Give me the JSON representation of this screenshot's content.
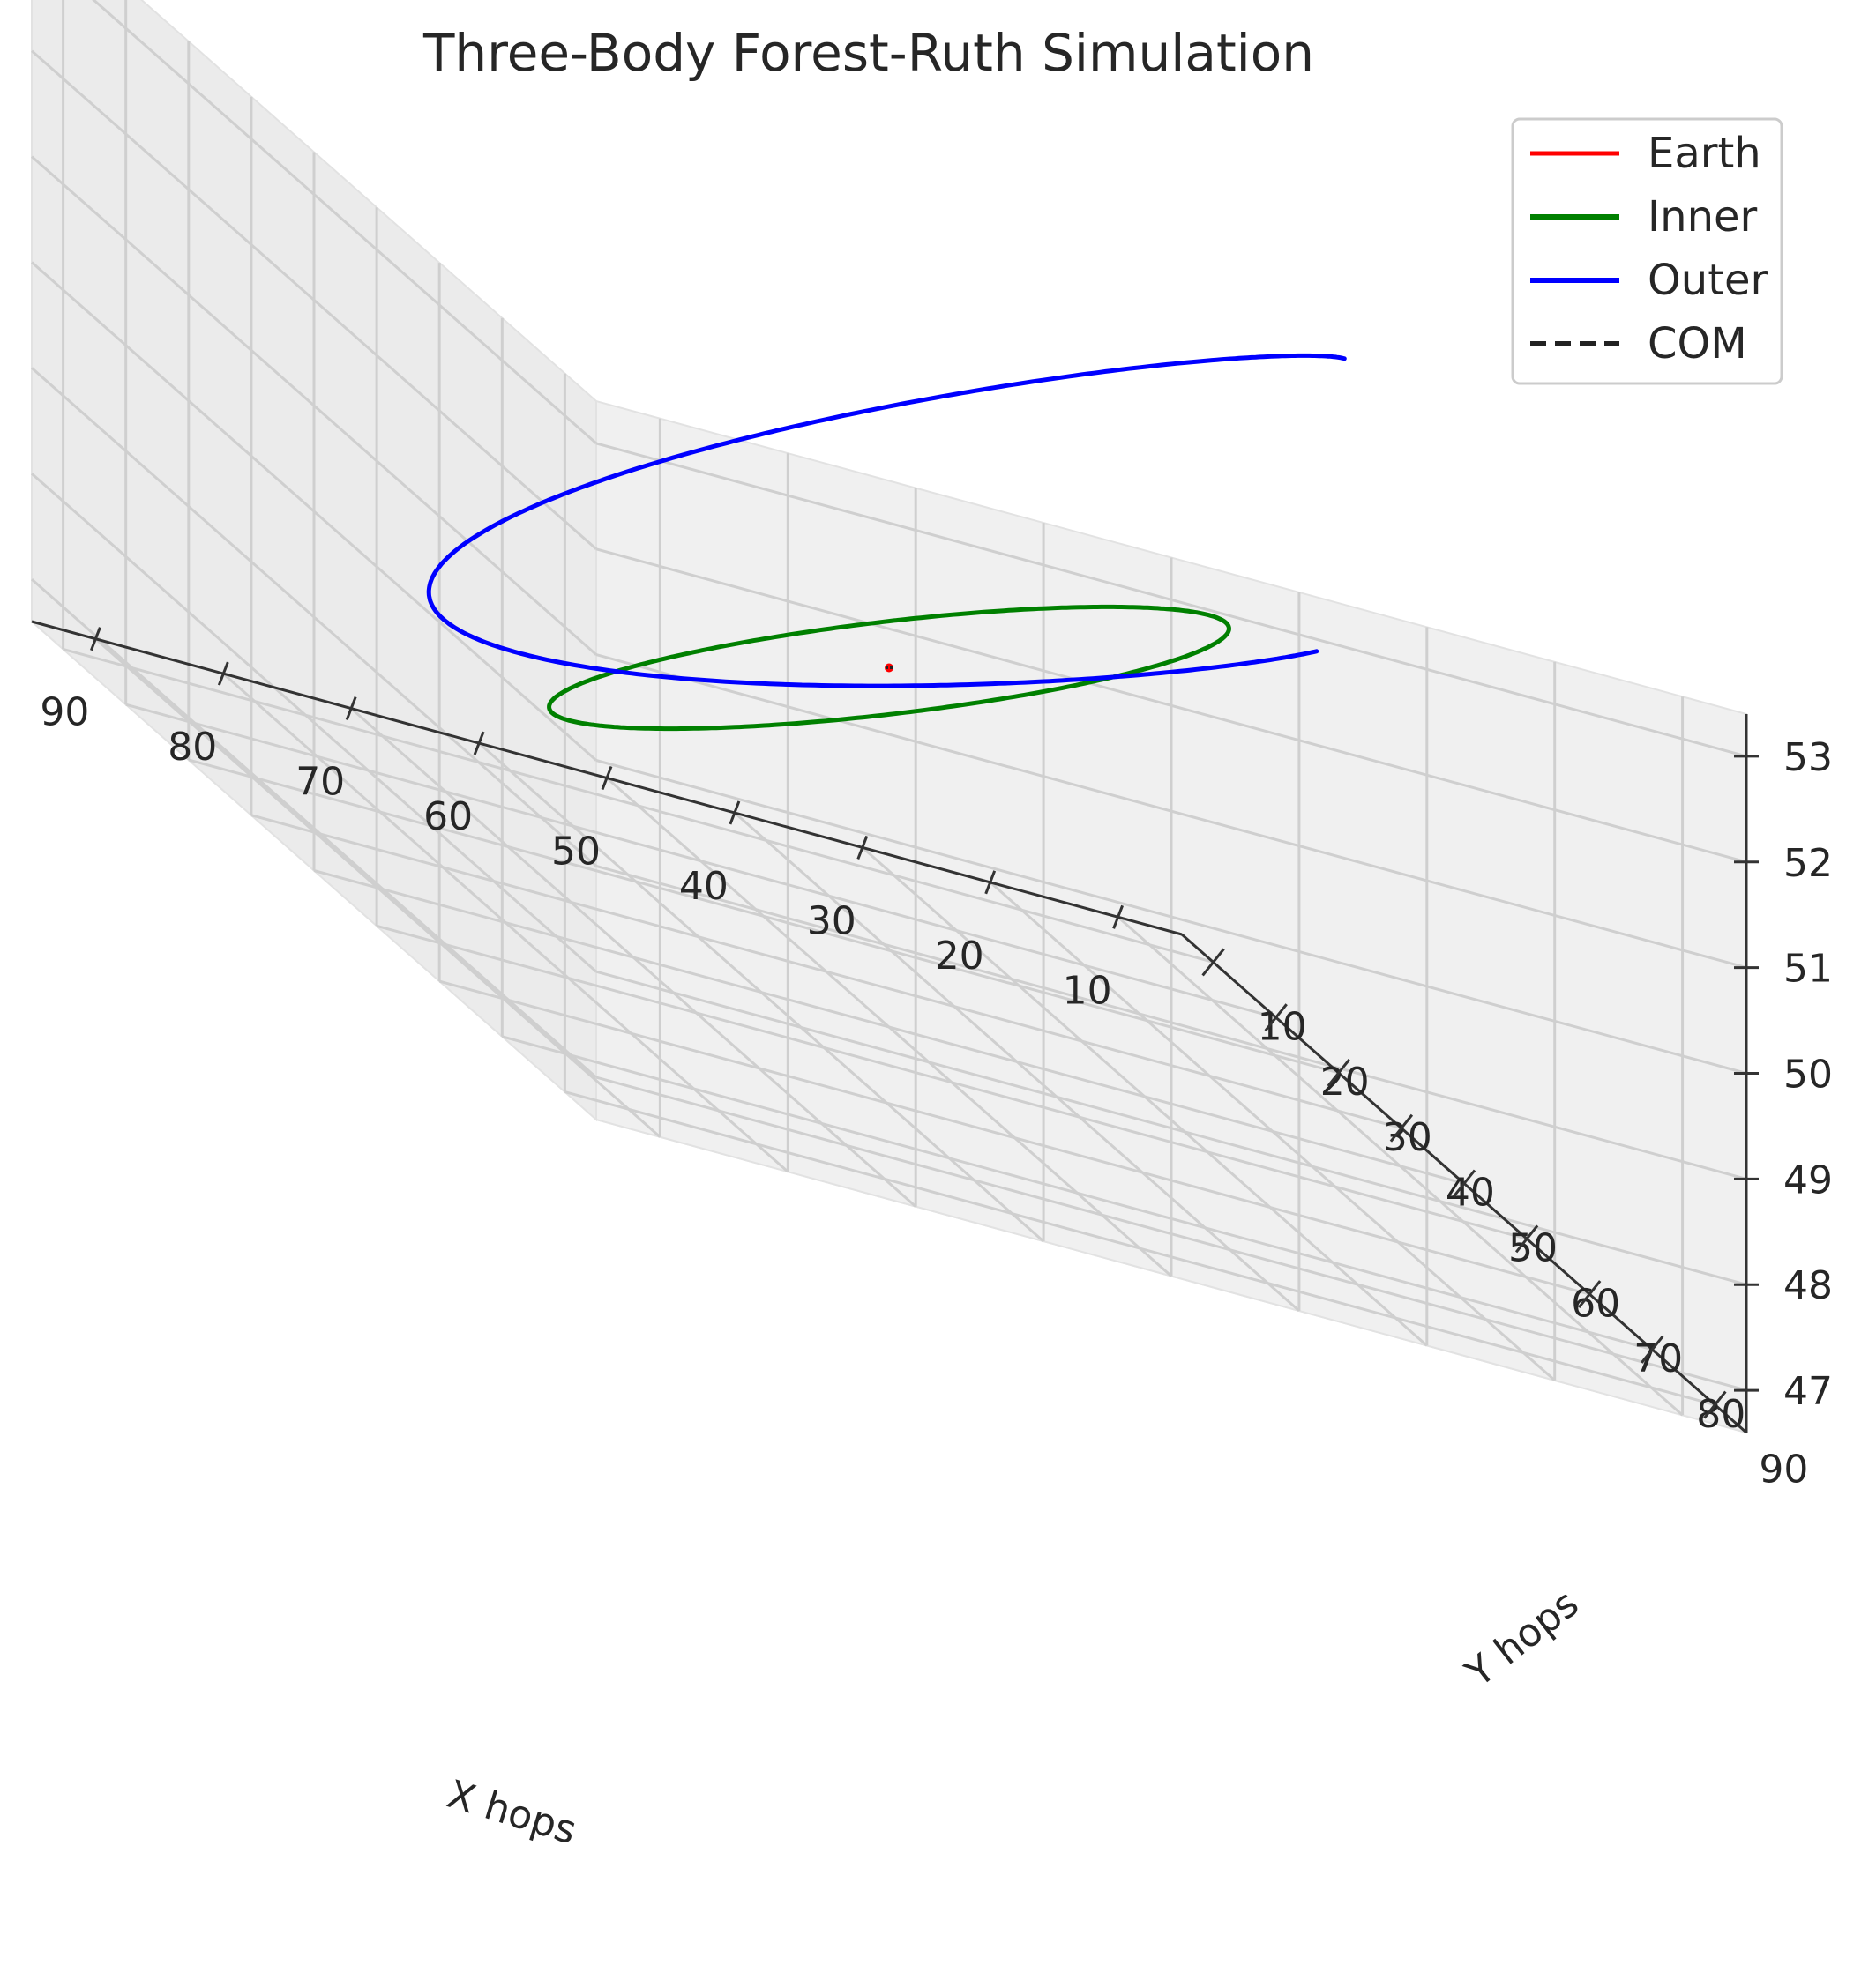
{
  "chart_data": {
    "type": "line3d",
    "title": "Three-Body Forest-Ruth Simulation",
    "xlabel": "X hops",
    "ylabel": "Y hops",
    "zlabel": "",
    "xlim": [
      5,
      95
    ],
    "ylim": [
      5,
      95
    ],
    "zlim": [
      46.6,
      53.4
    ],
    "xticks": [
      10,
      20,
      30,
      40,
      50,
      60,
      70,
      80,
      90
    ],
    "yticks": [
      10,
      20,
      30,
      40,
      50,
      60,
      70,
      80,
      90
    ],
    "zticks": [
      47,
      48,
      49,
      50,
      51,
      52,
      53
    ],
    "grid": true,
    "legend_position": "top-right",
    "series": [
      {
        "name": "Earth",
        "color": "#ff0000",
        "style": "solid",
        "kind": "point",
        "points": [
          [
            50,
            50,
            50
          ]
        ]
      },
      {
        "name": "Inner",
        "color": "#008000",
        "style": "solid",
        "kind": "ellipse",
        "center": [
          50,
          50,
          50
        ],
        "axis_u": [
          -33,
          -14,
          0.8
        ],
        "axis_v": [
          -2.3,
          5.5,
          0
        ],
        "turns": 1
      },
      {
        "name": "Outer",
        "color": "#0000ff",
        "style": "solid",
        "kind": "spiral",
        "center": [
          50,
          50,
          50
        ],
        "axis_u": [
          -45,
          -20,
          1.0
        ],
        "axis_v": [
          -3.5,
          8.5,
          0
        ],
        "start_angle_deg": 34,
        "sweep_deg": 330,
        "end_offset": [
          0,
          0,
          2.4
        ]
      },
      {
        "name": "COM",
        "color": "#222222",
        "style": "dashed",
        "kind": "point",
        "points": [
          [
            50,
            50,
            50
          ]
        ]
      }
    ]
  }
}
